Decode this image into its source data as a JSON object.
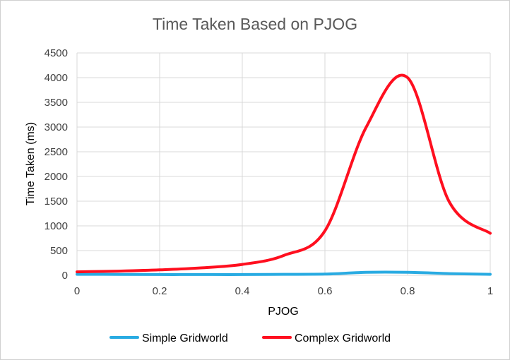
{
  "chart_data": {
    "type": "line",
    "title": "Time Taken Based on PJOG",
    "xlabel": "PJOG",
    "ylabel": "Time Taken (ms)",
    "xlim": [
      0,
      1
    ],
    "ylim": [
      0,
      4500
    ],
    "x_ticks": [
      0,
      0.2,
      0.4,
      0.6,
      0.8,
      1
    ],
    "y_ticks": [
      0,
      500,
      1000,
      1500,
      2000,
      2500,
      3000,
      3500,
      4000,
      4500
    ],
    "grid": true,
    "legend_position": "bottom",
    "series": [
      {
        "name": "Simple Gridworld",
        "color": "#29abe2",
        "x": [
          0,
          0.1,
          0.2,
          0.3,
          0.4,
          0.5,
          0.6,
          0.7,
          0.8,
          0.9,
          1
        ],
        "y": [
          20,
          18,
          15,
          15,
          15,
          20,
          25,
          60,
          60,
          35,
          20
        ]
      },
      {
        "name": "Complex Gridworld",
        "color": "#ff0f1f",
        "x": [
          0,
          0.1,
          0.2,
          0.3,
          0.4,
          0.5,
          0.6,
          0.7,
          0.8,
          0.9,
          1
        ],
        "y": [
          70,
          85,
          110,
          150,
          220,
          400,
          900,
          3000,
          4000,
          1500,
          850
        ]
      }
    ]
  }
}
